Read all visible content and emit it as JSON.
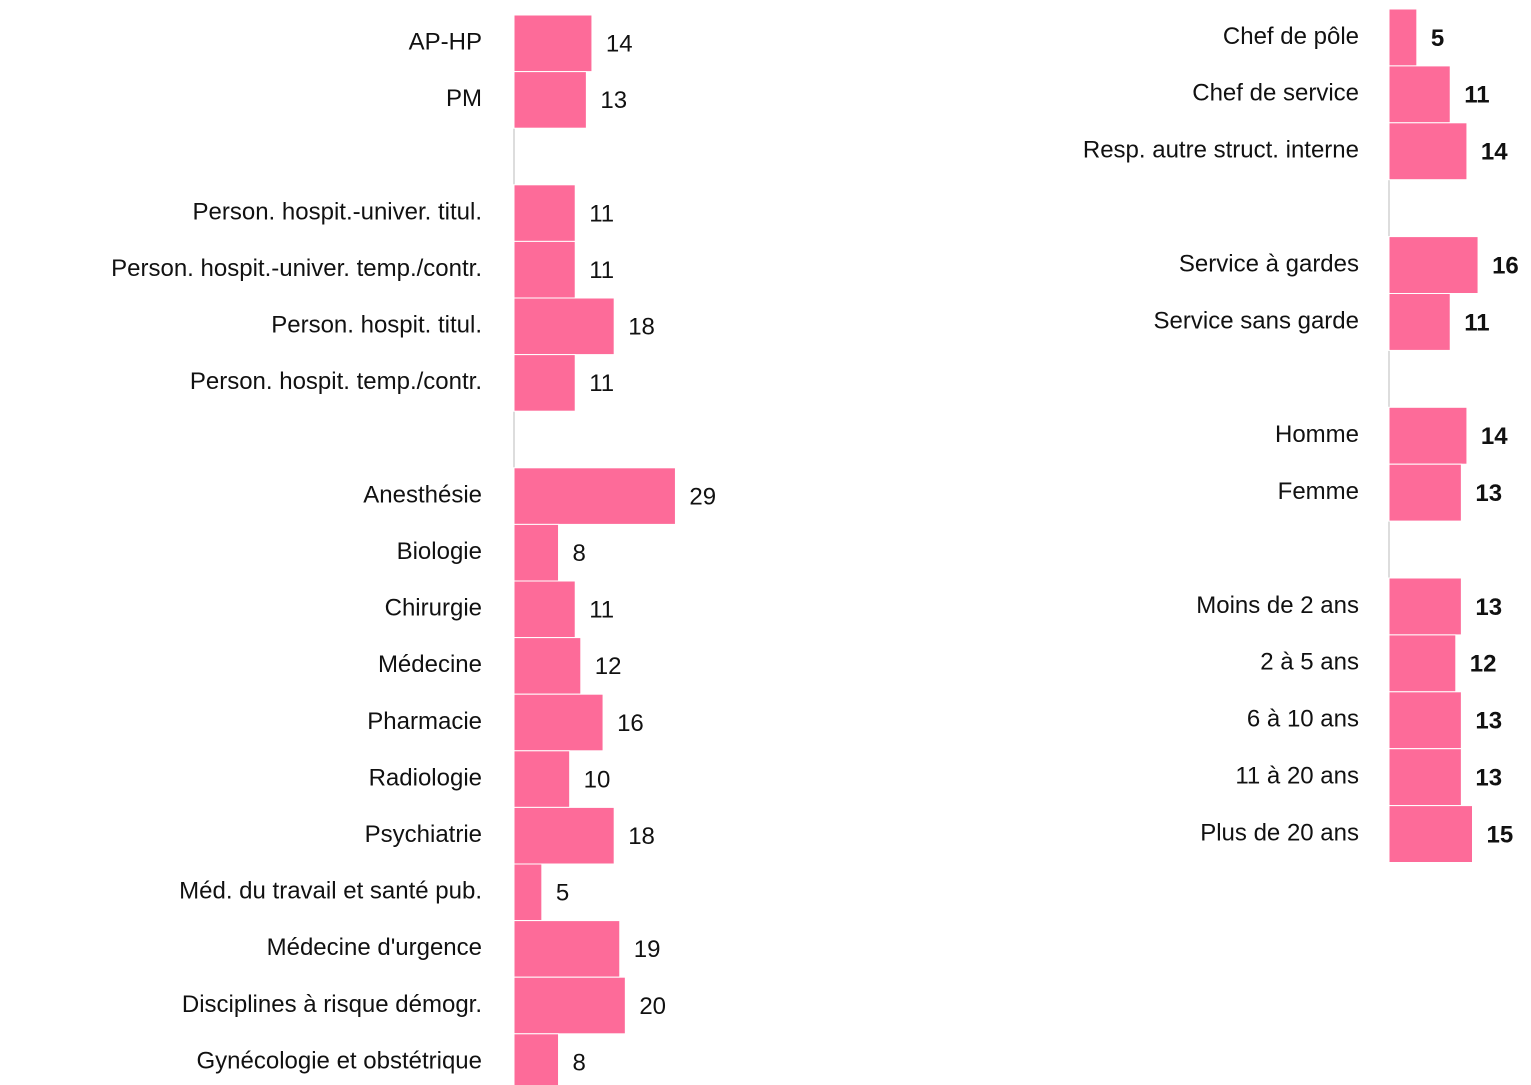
{
  "chart_data": [
    {
      "type": "bar",
      "orientation": "horizontal",
      "color": "#fd6b99",
      "xlim": [
        0,
        30
      ],
      "categories": [
        "AP-HP",
        "PM",
        null,
        "Person. hospit.-univer. titul.",
        "Person. hospit.-univer. temp./contr.",
        "Person. hospit. titul.",
        "Person. hospit. temp./contr.",
        null,
        "Anesthésie",
        "Biologie",
        "Chirurgie",
        "Médecine",
        "Pharmacie",
        "Radiologie",
        "Psychiatrie",
        "Méd. du travail et santé pub.",
        "Médecine d'urgence",
        "Disciplines à risque démogr.",
        "Gynécologie et obstétrique"
      ],
      "values": [
        14,
        13,
        null,
        11,
        11,
        18,
        11,
        null,
        29,
        8,
        11,
        12,
        16,
        10,
        18,
        5,
        19,
        20,
        8
      ]
    },
    {
      "type": "bar",
      "orientation": "horizontal",
      "color": "#fd6b99",
      "xlim": [
        0,
        30
      ],
      "categories": [
        "Chef de pôle",
        "Chef de service",
        "Resp. autre struct. interne",
        null,
        "Service à gardes",
        "Service sans garde",
        null,
        "Homme",
        "Femme",
        null,
        "Moins de 2 ans",
        "2 à 5 ans",
        "6 à 10 ans",
        "11 à 20 ans",
        "Plus de 20 ans"
      ],
      "values": [
        5,
        11,
        14,
        null,
        16,
        11,
        null,
        14,
        13,
        null,
        13,
        12,
        13,
        13,
        15
      ]
    }
  ]
}
